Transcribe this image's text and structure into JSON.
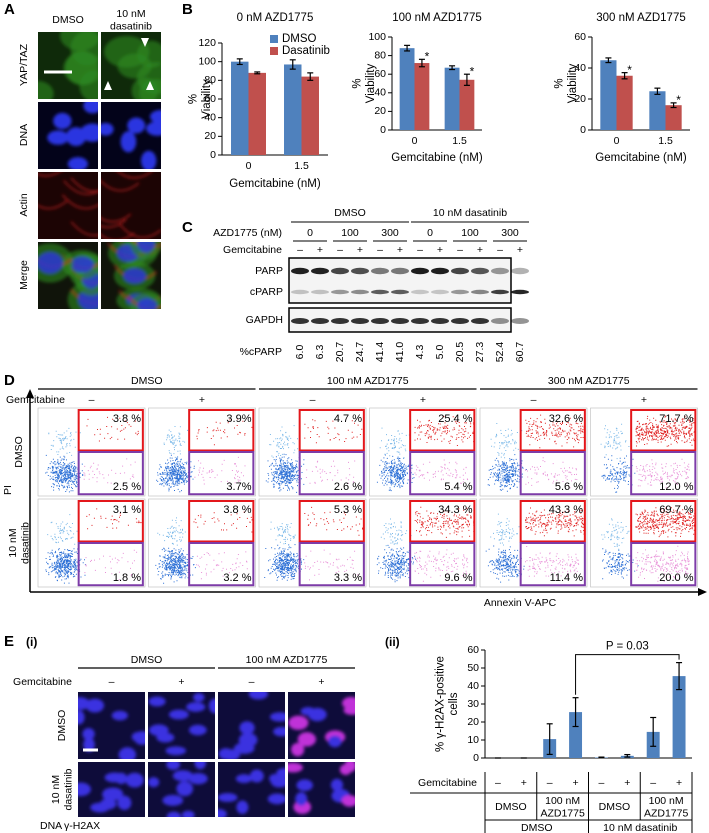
{
  "panel_labels": {
    "a": "A",
    "b": "B",
    "c": "C",
    "d": "D",
    "e": "E",
    "e_i": "(i)",
    "e_ii": "(ii)"
  },
  "panel_a": {
    "columns": [
      "DMSO",
      "10 nM dasatinib"
    ],
    "rows": [
      "YAP/TAZ",
      "DNA",
      "Actin",
      "Merge"
    ]
  },
  "chart_data": [
    {
      "type": "bar",
      "title": "0 nM AZD1775",
      "x_label": "Gemcitabine (nM)",
      "y_label": "% Viability",
      "categories": [
        "0",
        "1.5"
      ],
      "series": [
        {
          "name": "DMSO",
          "color": "#4f81bd",
          "values": [
            100,
            97
          ],
          "errors": [
            3,
            5
          ]
        },
        {
          "name": "Dasatinib",
          "color": "#c0504d",
          "values": [
            88,
            84
          ],
          "errors": [
            1,
            4
          ]
        }
      ],
      "ylim": [
        0,
        120
      ],
      "yticks": [
        0,
        20,
        40,
        60,
        80,
        100,
        120
      ],
      "legend": "upper right"
    },
    {
      "type": "bar",
      "title": "100 nM AZD1775",
      "x_label": "Gemcitabine (nM)",
      "y_label": "% Viability",
      "categories": [
        "0",
        "1.5"
      ],
      "series": [
        {
          "name": "DMSO",
          "color": "#4f81bd",
          "values": [
            88,
            67
          ],
          "errors": [
            3,
            2
          ]
        },
        {
          "name": "Dasatinib",
          "color": "#c0504d",
          "values": [
            72,
            54
          ],
          "errors": [
            4,
            6
          ],
          "significance": [
            "*",
            "*"
          ]
        }
      ],
      "ylim": [
        0,
        100
      ],
      "yticks": [
        0,
        20,
        40,
        60,
        80,
        100
      ]
    },
    {
      "type": "bar",
      "title": "300 nM AZD1775",
      "x_label": "Gemcitabine (nM)",
      "y_label": "% Viability",
      "categories": [
        "0",
        "1.5"
      ],
      "series": [
        {
          "name": "DMSO",
          "color": "#4f81bd",
          "values": [
            45,
            25
          ],
          "errors": [
            1.5,
            2
          ]
        },
        {
          "name": "Dasatinib",
          "color": "#c0504d",
          "values": [
            35,
            16
          ],
          "errors": [
            2,
            1.5
          ],
          "significance": [
            "*",
            "*"
          ]
        }
      ],
      "ylim": [
        0,
        60
      ],
      "yticks": [
        0,
        20,
        40,
        60
      ]
    },
    {
      "type": "bar",
      "y_label": "% γ-H2AX-positive cells",
      "category_label": "Gemcitabine",
      "categories": [
        "–",
        "+",
        "–",
        "+",
        "–",
        "+",
        "–",
        "+"
      ],
      "groups": [
        "DMSO",
        "100 nM AZD1775",
        "DMSO",
        "100 nM AZD1775"
      ],
      "supergroups": [
        "DMSO",
        "10 nM dasatinib"
      ],
      "series": [
        {
          "color": "#4f81bd",
          "values": [
            0,
            0,
            10.5,
            25.5,
            0.3,
            1.2,
            14.5,
            45.5
          ],
          "errors": [
            0,
            0,
            8.5,
            8,
            0.2,
            0.7,
            8,
            7.5
          ]
        }
      ],
      "annotation": "P = 0.03",
      "ylim": [
        0,
        60
      ],
      "yticks": [
        0,
        10,
        20,
        30,
        40,
        50,
        60
      ]
    }
  ],
  "panel_c": {
    "groups": [
      "DMSO",
      "10 nM dasatinib"
    ],
    "azd_label": "AZD1775 (nM)",
    "azd1775": [
      "0",
      "100",
      "300",
      "0",
      "100",
      "300"
    ],
    "gemcitabine_label": "Gemcitabine",
    "gemcitabine": [
      "–",
      "+",
      "–",
      "+",
      "–",
      "+",
      "–",
      "+",
      "–",
      "+",
      "–",
      "+"
    ],
    "bands": [
      "PARP",
      "cPARP",
      "GAPDH"
    ],
    "quantity_label": "%cPARP",
    "cparp": [
      "6.0",
      "6.3",
      "20.7",
      "24.7",
      "41.4",
      "41.0",
      "4.3",
      "5.0",
      "20.5",
      "27.3",
      "52.4",
      "60.7"
    ]
  },
  "panel_d": {
    "groups": [
      "DMSO",
      "100 nM AZD1775",
      "300 nM AZD1775"
    ],
    "gemcitabine_label": "Gemcitabine",
    "gemcitabine": [
      "–",
      "+",
      "–",
      "+",
      "–",
      "+"
    ],
    "rows": [
      "DMSO",
      "10 nM dasatinib"
    ],
    "y_label": "PI",
    "x_label": "Annexin V-APC",
    "upper": [
      [
        "3.8 %",
        "3.9%",
        "4.7 %",
        "25.4 %",
        "32.6 %",
        "71.7 %"
      ],
      [
        "3.1 %",
        "3.8 %",
        "5.3 %",
        "34.3 %",
        "43.3 %",
        "69.7 %"
      ]
    ],
    "lower": [
      [
        "2.5 %",
        "3.7%",
        "2.6 %",
        "5.4 %",
        "5.6 %",
        "12.0 %"
      ],
      [
        "1.8 %",
        "3.2 %",
        "3.3 %",
        "9.6 %",
        "11.4 %",
        "20.0 %"
      ]
    ]
  },
  "panel_e": {
    "groups": [
      "DMSO",
      "100 nM AZD1775"
    ],
    "gemcitabine_label": "Gemcitabine",
    "gemcitabine": [
      "–",
      "+",
      "–",
      "+"
    ],
    "rows": [
      "DMSO",
      "10 nM dasatinib"
    ],
    "stain_legend": [
      "DNA",
      "γ-H2AX"
    ]
  }
}
